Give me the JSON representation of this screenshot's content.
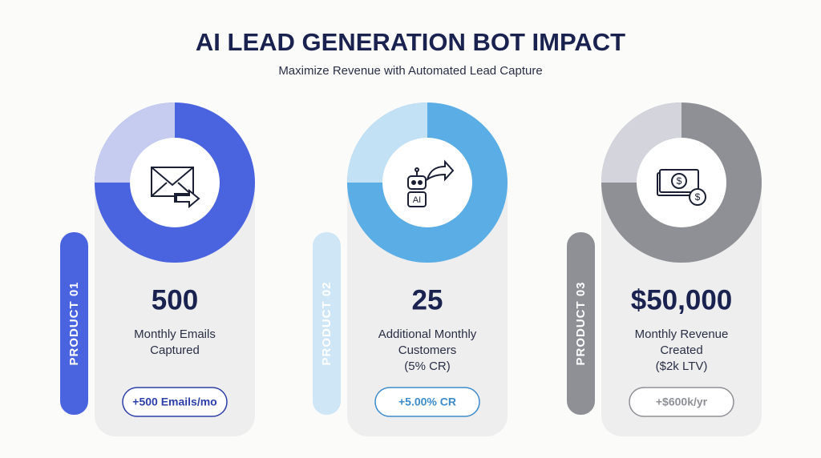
{
  "header": {
    "title": "AI LEAD GENERATION BOT IMPACT",
    "subtitle": "Maximize Revenue with Automated Lead Capture"
  },
  "cards": [
    {
      "label": "PRODUCT 01",
      "value": "500",
      "description": [
        "Monthly Emails",
        "Captured"
      ],
      "badge": "+500 Emails/mo",
      "color": "#4a63df",
      "light_color": "#c6ccef",
      "pill_color": "#4a63df",
      "badge_text_color": "#2d3fa8"
    },
    {
      "label": "PRODUCT 02",
      "value": "25",
      "description": [
        "Additional Monthly",
        "Customers",
        "(5% CR)"
      ],
      "badge": "+5.00% CR",
      "color": "#5aade5",
      "light_color": "#c3e1f4",
      "pill_color": "#cfe6f6",
      "badge_text_color": "#3c8ccc"
    },
    {
      "label": "PRODUCT 03",
      "value": "$50,000",
      "description": [
        "Monthly Revenue",
        "Created",
        "($2k LTV)"
      ],
      "badge": "+$600k/yr",
      "color": "#8f9095",
      "light_color": "#d4d5dc",
      "pill_color": "#8f9095",
      "badge_text_color": "#8f9095"
    }
  ]
}
